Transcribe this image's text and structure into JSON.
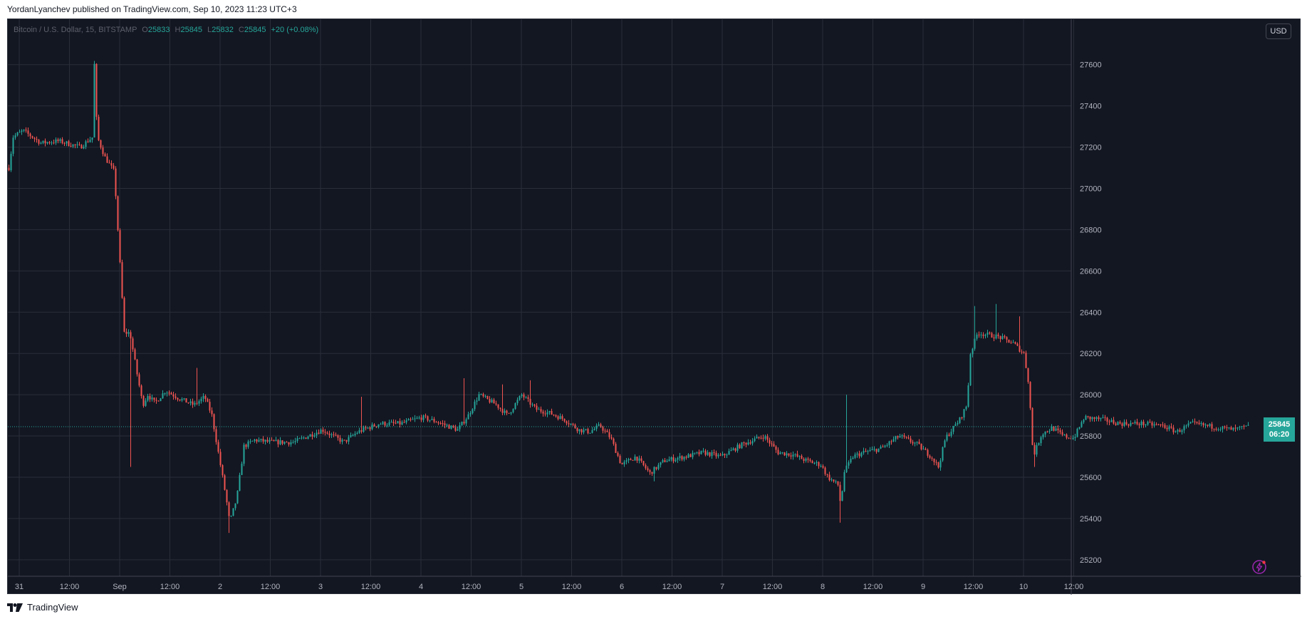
{
  "header": {
    "text": "YordanLyanchev published on TradingView.com, Sep 10, 2023 11:23 UTC+3"
  },
  "legend": {
    "symbol": "Bitcoin / U.S. Dollar, 15, BITSTAMP",
    "o_label": "O",
    "o_value": "25833",
    "h_label": "H",
    "h_value": "25845",
    "l_label": "L",
    "l_value": "25832",
    "c_label": "C",
    "c_value": "25845",
    "change": "+20 (+0.08%)"
  },
  "currency_button": "USD",
  "price_tag": {
    "price": "25845",
    "countdown": "06:20"
  },
  "footer": {
    "brand": "TradingView",
    "logo_icon": "tradingview-logo-icon"
  },
  "colors": {
    "background": "#131722",
    "grid": "#2a2e39",
    "up": "#26a69a",
    "down": "#ef5350",
    "axis_text": "#b2b5be"
  },
  "chart_data": {
    "type": "candlestick",
    "symbol": "Bitcoin / U.S. Dollar, 15, BITSTAMP",
    "ylim": [
      25120,
      27820
    ],
    "y_ticks": [
      25200,
      25400,
      25600,
      25800,
      26000,
      26200,
      26400,
      26600,
      26800,
      27000,
      27200,
      27400,
      27600
    ],
    "x_ticks": [
      "31",
      "12:00",
      "Sep",
      "12:00",
      "2",
      "12:00",
      "3",
      "12:00",
      "4",
      "12:00",
      "5",
      "12:00",
      "6",
      "12:00",
      "7",
      "12:00",
      "8",
      "12:00",
      "9",
      "12:00",
      "10",
      "12:00"
    ],
    "grid": true,
    "last_price": 25845,
    "path_points": [
      [
        0,
        27100
      ],
      [
        6,
        27250
      ],
      [
        20,
        27280
      ],
      [
        45,
        27220
      ],
      [
        70,
        27230
      ],
      [
        100,
        27200
      ],
      [
        118,
        27250
      ],
      [
        120,
        27600
      ],
      [
        124,
        27250
      ],
      [
        135,
        27150
      ],
      [
        148,
        27080
      ],
      [
        153,
        26800
      ],
      [
        162,
        26300
      ],
      [
        170,
        26300
      ],
      [
        180,
        26100
      ],
      [
        188,
        25950
      ],
      [
        195,
        26000
      ],
      [
        205,
        25960
      ],
      [
        220,
        26020
      ],
      [
        240,
        25980
      ],
      [
        260,
        25950
      ],
      [
        275,
        25990
      ],
      [
        285,
        25900
      ],
      [
        295,
        25700
      ],
      [
        305,
        25500
      ],
      [
        310,
        25380
      ],
      [
        320,
        25500
      ],
      [
        330,
        25750
      ],
      [
        345,
        25780
      ],
      [
        370,
        25770
      ],
      [
        400,
        25770
      ],
      [
        440,
        25830
      ],
      [
        470,
        25770
      ],
      [
        490,
        25820
      ],
      [
        520,
        25860
      ],
      [
        550,
        25860
      ],
      [
        580,
        25890
      ],
      [
        600,
        25870
      ],
      [
        630,
        25830
      ],
      [
        645,
        25900
      ],
      [
        660,
        26000
      ],
      [
        685,
        25950
      ],
      [
        700,
        25900
      ],
      [
        720,
        26000
      ],
      [
        740,
        25930
      ],
      [
        760,
        25910
      ],
      [
        780,
        25880
      ],
      [
        800,
        25830
      ],
      [
        815,
        25820
      ],
      [
        830,
        25850
      ],
      [
        845,
        25790
      ],
      [
        860,
        25660
      ],
      [
        880,
        25700
      ],
      [
        900,
        25620
      ],
      [
        920,
        25680
      ],
      [
        950,
        25700
      ],
      [
        975,
        25720
      ],
      [
        1000,
        25700
      ],
      [
        1030,
        25760
      ],
      [
        1060,
        25800
      ],
      [
        1080,
        25720
      ],
      [
        1100,
        25710
      ],
      [
        1120,
        25680
      ],
      [
        1140,
        25660
      ],
      [
        1150,
        25600
      ],
      [
        1165,
        25560
      ],
      [
        1168,
        25450
      ],
      [
        1172,
        25620
      ],
      [
        1185,
        25700
      ],
      [
        1200,
        25720
      ],
      [
        1225,
        25740
      ],
      [
        1250,
        25800
      ],
      [
        1275,
        25760
      ],
      [
        1295,
        25700
      ],
      [
        1305,
        25650
      ],
      [
        1315,
        25790
      ],
      [
        1335,
        25880
      ],
      [
        1345,
        25950
      ],
      [
        1350,
        26200
      ],
      [
        1360,
        26300
      ],
      [
        1375,
        26290
      ],
      [
        1390,
        26280
      ],
      [
        1410,
        26250
      ],
      [
        1425,
        26200
      ],
      [
        1432,
        26050
      ],
      [
        1438,
        25700
      ],
      [
        1450,
        25810
      ],
      [
        1465,
        25840
      ],
      [
        1480,
        25800
      ],
      [
        1495,
        25790
      ],
      [
        1510,
        25890
      ],
      [
        1535,
        25880
      ],
      [
        1560,
        25860
      ],
      [
        1590,
        25860
      ],
      [
        1620,
        25850
      ],
      [
        1640,
        25820
      ],
      [
        1660,
        25860
      ],
      [
        1680,
        25850
      ],
      [
        1700,
        25840
      ],
      [
        1720,
        25830
      ],
      [
        1740,
        25845
      ]
    ],
    "spikes": [
      [
        120,
        27530
      ],
      [
        170,
        25650
      ],
      [
        265,
        26130
      ],
      [
        310,
        25330
      ],
      [
        495,
        25990
      ],
      [
        640,
        26080
      ],
      [
        694,
        26050
      ],
      [
        731,
        26070
      ],
      [
        905,
        25580
      ],
      [
        1168,
        25380
      ],
      [
        1175,
        26000
      ],
      [
        1357,
        26430
      ],
      [
        1385,
        26440
      ],
      [
        1418,
        26380
      ],
      [
        1440,
        25650
      ]
    ]
  },
  "bolt_icon": "lightning-icon"
}
